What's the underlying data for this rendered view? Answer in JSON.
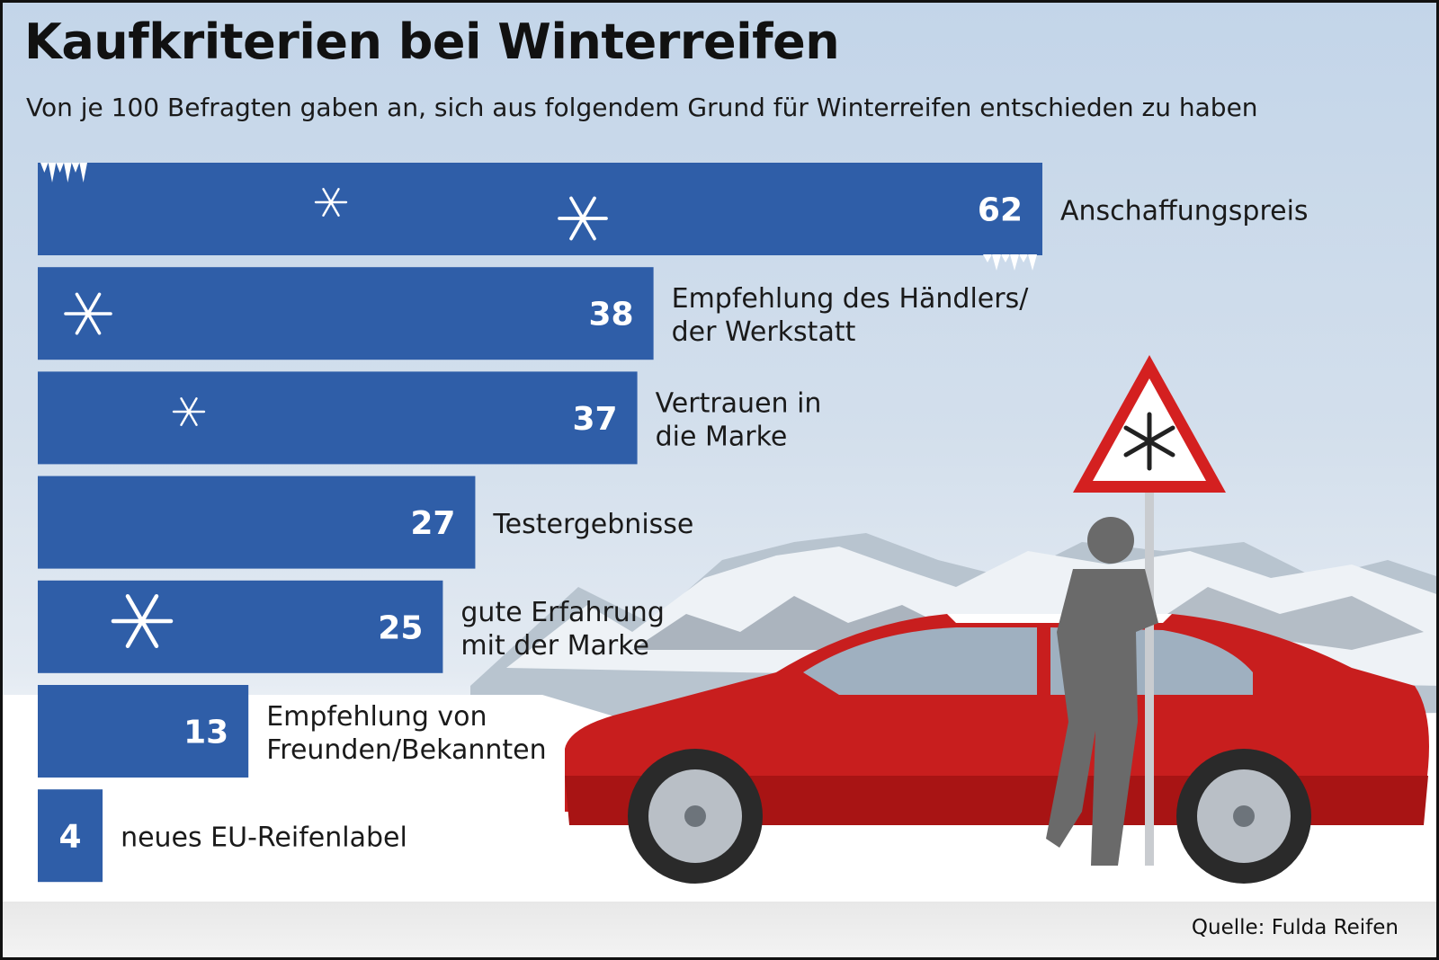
{
  "header": {
    "title": "Kaufkriterien bei Winterreifen",
    "subtitle": "Von je 100 Befragten gaben an, sich aus folgendem Grund für Winterreifen entschieden zu haben"
  },
  "footer": {
    "source": "Quelle: Fulda Reifen"
  },
  "colors": {
    "bar": "#2f5ea8",
    "value_text": "#ffffff",
    "label_text": "#1a1a1a",
    "car": "#c81e1e",
    "sign_border": "#d42020"
  },
  "icons": [
    "snowflake-icon",
    "icicle-icon",
    "warning-sign-icon",
    "car-illustration",
    "person-silhouette",
    "mountain-illustration"
  ],
  "chart_data": {
    "type": "bar",
    "orientation": "horizontal",
    "categories": [
      [
        "Anschaffungspreis"
      ],
      [
        "Empfehlung des Händlers/",
        "der Werkstatt"
      ],
      [
        "Vertrauen in",
        "die Marke"
      ],
      [
        "Testergebnisse"
      ],
      [
        "gute Erfahrung",
        "mit der Marke"
      ],
      [
        "Empfehlung von",
        "Freunden/Bekannten"
      ],
      [
        "neues EU-Reifenlabel"
      ]
    ],
    "values": [
      62,
      38,
      37,
      27,
      25,
      13,
      4
    ],
    "data_labels": [
      "62",
      "38",
      "37",
      "27",
      "25",
      "13",
      "4"
    ],
    "xlim": [
      0,
      62
    ],
    "grid": false,
    "legend": "none"
  }
}
